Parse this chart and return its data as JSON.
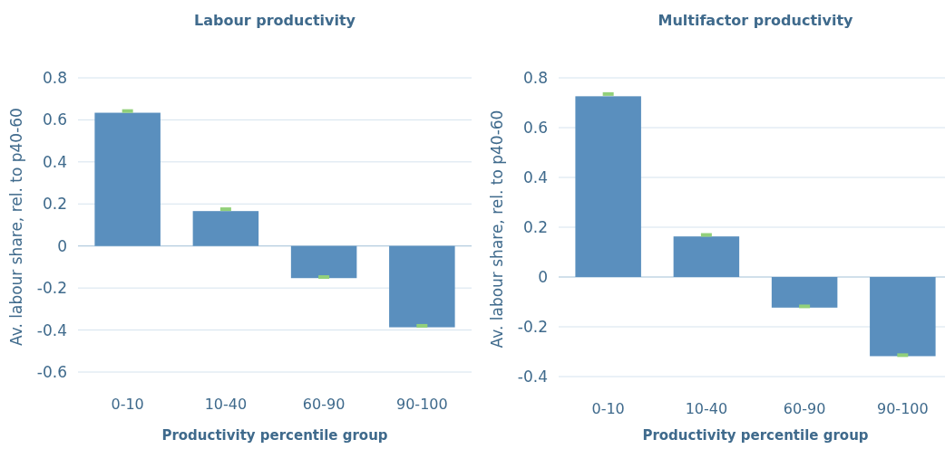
{
  "chart_data": [
    {
      "type": "bar",
      "title": "Labour productivity",
      "xlabel": "Productivity percentile group",
      "ylabel": "Av. labour share, rel. to p40-60",
      "categories": [
        "0-10",
        "10-40",
        "60-90",
        "90-100"
      ],
      "series": [
        {
          "color": "#5a8fbe",
          "values": [
            0.634,
            0.166,
            -0.153,
            -0.387
          ]
        },
        {
          "type": "scatter",
          "color": "#92d07a",
          "x": [
            "0-10",
            "10-40",
            "60-90",
            "90-100"
          ],
          "values": [
            0.642,
            0.175,
            -0.148,
            -0.38
          ]
        }
      ],
      "ylim": [
        -0.6,
        0.8
      ],
      "yticks": [
        -0.6,
        -0.4,
        -0.2,
        0,
        0.2,
        0.4,
        0.6,
        0.8
      ],
      "grid": "y",
      "marker": "square"
    },
    {
      "type": "bar",
      "title": "Multifactor productivity",
      "xlabel": "Productivity percentile group",
      "ylabel": "Av. labour share, rel. to p40-60",
      "categories": [
        "0-10",
        "10-40",
        "60-90",
        "90-100"
      ],
      "series": [
        {
          "color": "#5a8fbe",
          "values": [
            0.726,
            0.163,
            -0.123,
            -0.318
          ]
        },
        {
          "type": "scatter",
          "color": "#92d07a",
          "x": [
            "0-10",
            "10-40",
            "60-90",
            "90-100"
          ],
          "values": [
            0.735,
            0.169,
            -0.118,
            -0.314
          ]
        }
      ],
      "ylim": [
        -0.4,
        0.8
      ],
      "yticks": [
        -0.4,
        -0.2,
        0,
        0.2,
        0.4,
        0.6,
        0.8
      ],
      "grid": "y",
      "marker": "square"
    }
  ]
}
